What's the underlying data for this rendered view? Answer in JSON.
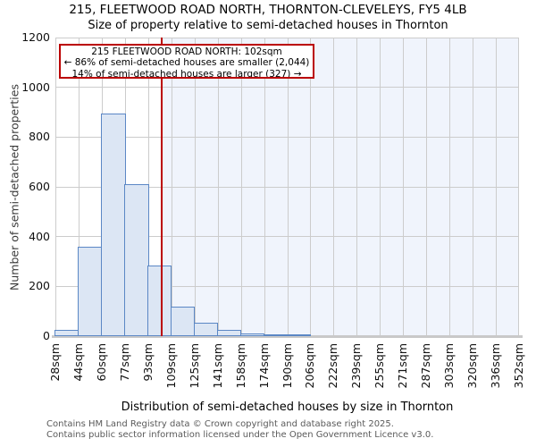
{
  "header": {
    "title": "215, FLEETWOOD ROAD NORTH, THORNTON-CLEVELEYS, FY5 4LB",
    "subtitle": "Size of property relative to semi-detached houses in Thornton"
  },
  "chart_data": {
    "type": "bar",
    "title": "215, FLEETWOOD ROAD NORTH, THORNTON-CLEVELEYS, FY5 4LB",
    "subtitle": "Size of property relative to semi-detached houses in Thornton",
    "xlabel": "Distribution of semi-detached houses by size in Thornton",
    "ylabel": "Number of semi-detached properties",
    "ylim": [
      0,
      1200
    ],
    "yticks": [
      0,
      200,
      400,
      600,
      800,
      1000,
      1200
    ],
    "tick_labels": [
      "28sqm",
      "44sqm",
      "60sqm",
      "77sqm",
      "93sqm",
      "109sqm",
      "125sqm",
      "141sqm",
      "158sqm",
      "174sqm",
      "190sqm",
      "206sqm",
      "222sqm",
      "239sqm",
      "255sqm",
      "271sqm",
      "287sqm",
      "303sqm",
      "320sqm",
      "336sqm",
      "352sqm"
    ],
    "bin_edges_sqm": [
      28,
      44,
      60,
      77,
      93,
      109,
      125,
      141,
      158,
      174,
      190,
      206,
      222,
      239,
      255,
      271,
      287,
      303,
      320,
      336,
      352
    ],
    "values": [
      25,
      360,
      895,
      610,
      285,
      120,
      55,
      25,
      12,
      8,
      5,
      0,
      0,
      0,
      0,
      0,
      0,
      0,
      0,
      0
    ],
    "grid": true,
    "legend": null,
    "marker": {
      "value_sqm": 102,
      "color": "#bb0000"
    },
    "shaded_region": {
      "from_sqm": 102,
      "to_sqm": 352,
      "color": "#f0f4fc"
    },
    "annotation": {
      "line1": "215 FLEETWOOD ROAD NORTH: 102sqm",
      "line2": "← 86% of semi-detached houses are smaller (2,044)",
      "line3": "14% of semi-detached houses are larger (327) →",
      "border_color": "#bb0000"
    },
    "colors": {
      "bar_fill": "#dce6f4",
      "bar_edge": "#5b87c5",
      "grid": "#cccccc",
      "axis_line": "#c9c9c9"
    }
  },
  "footer": {
    "line1": "Contains HM Land Registry data © Crown copyright and database right 2025.",
    "line2": "Contains public sector information licensed under the Open Government Licence v3.0."
  }
}
